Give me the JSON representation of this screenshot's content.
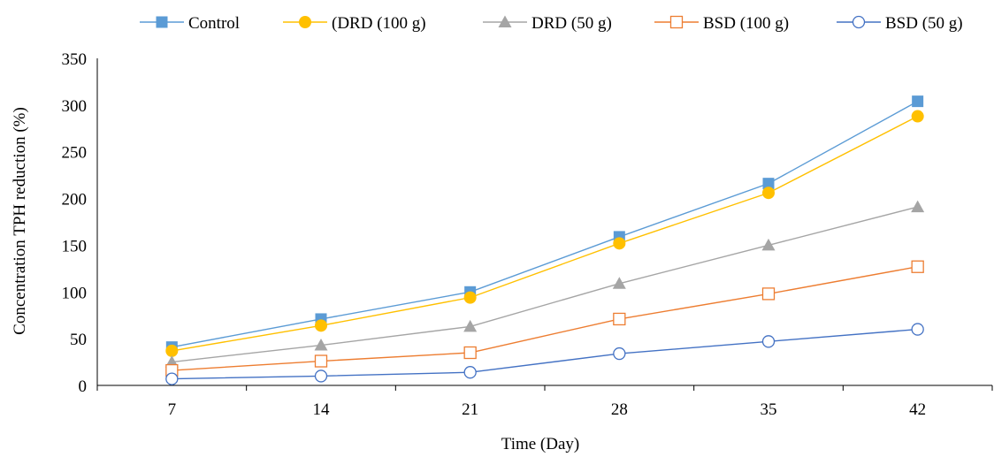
{
  "chart_data": {
    "type": "line",
    "xlabel": "Time (Day)",
    "ylabel": "Concentration TPH reduction (%)",
    "categories": [
      "7",
      "14",
      "21",
      "28",
      "35",
      "42"
    ],
    "ylim": [
      0,
      350
    ],
    "yticks": [
      0,
      50,
      100,
      150,
      200,
      250,
      300,
      350
    ],
    "grid": false,
    "legend_position": "top",
    "series": [
      {
        "name": "Control",
        "values": [
          41,
          71,
          100,
          159,
          216,
          304
        ],
        "color": "#5B9BD5",
        "marker": "square-filled"
      },
      {
        "name": "(DRD (100 g)",
        "values": [
          37,
          64,
          94,
          152,
          206,
          288
        ],
        "color": "#FFC000",
        "marker": "circle-filled"
      },
      {
        "name": "DRD (50 g)",
        "values": [
          25,
          43,
          63,
          109,
          150,
          191
        ],
        "color": "#A5A5A5",
        "marker": "triangle-filled"
      },
      {
        "name": "BSD (100 g)",
        "values": [
          16,
          26,
          35,
          71,
          98,
          127
        ],
        "color": "#ED7D31",
        "marker": "square-open"
      },
      {
        "name": "BSD (50 g)",
        "values": [
          7,
          10,
          14,
          34,
          47,
          60
        ],
        "color": "#4472C4",
        "marker": "circle-open"
      }
    ]
  }
}
